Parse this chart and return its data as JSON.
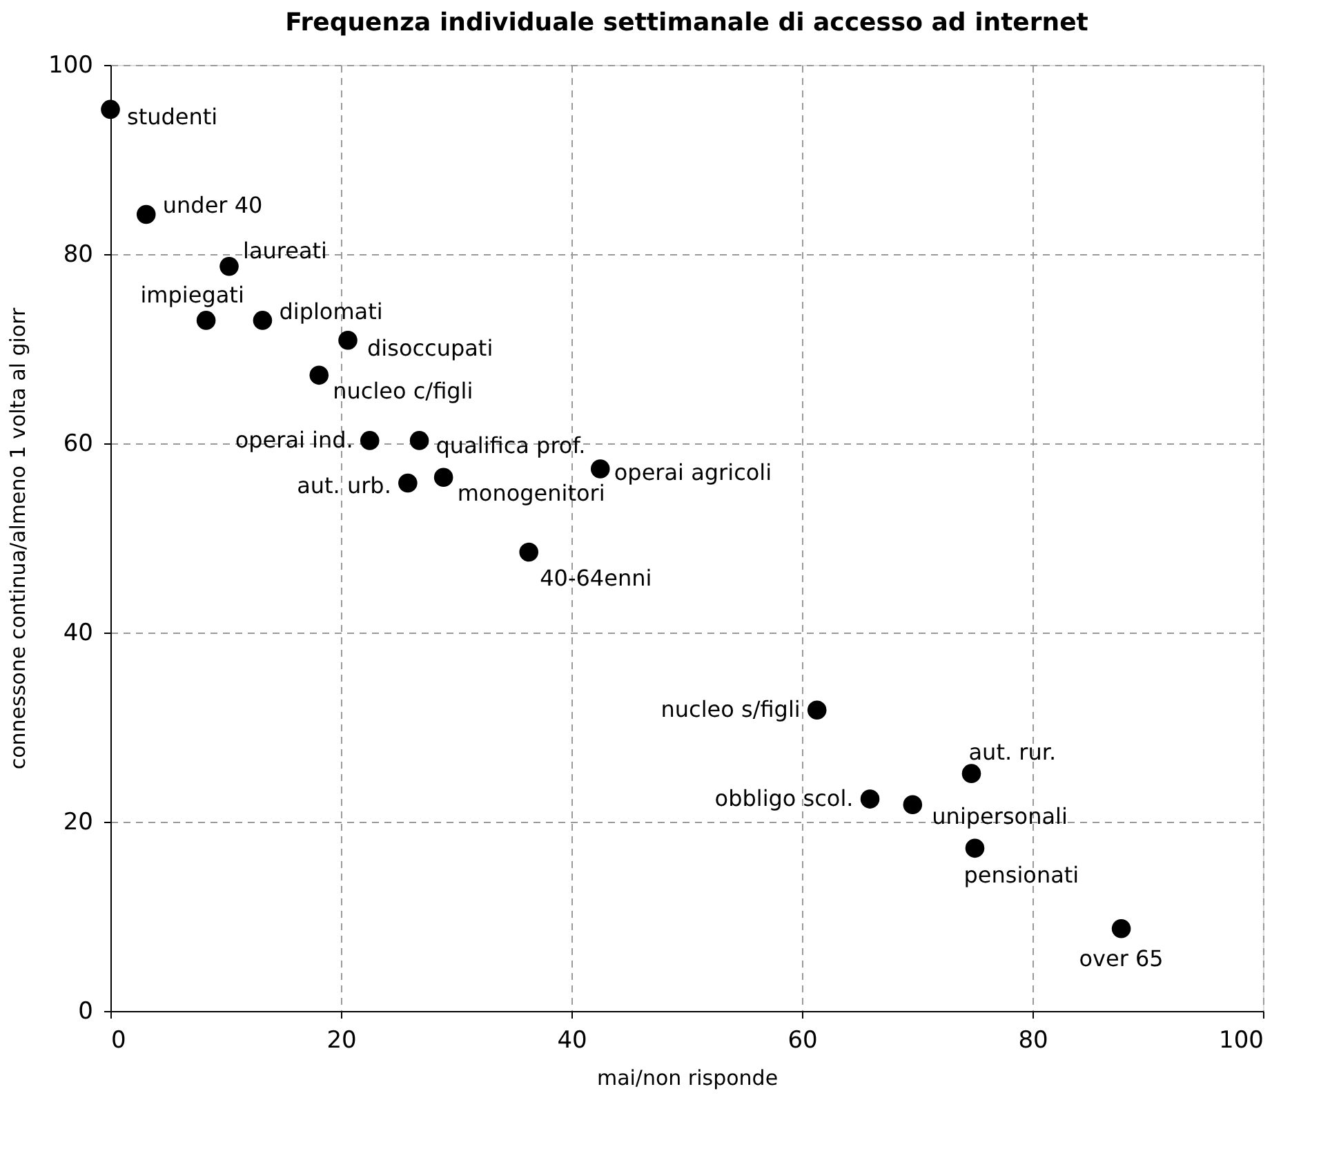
{
  "chart_data": {
    "type": "scatter",
    "title": "Frequenza individuale settimanale di accesso ad internet",
    "xlabel": "mai/non risponde",
    "ylabel": "connessone continua/almeno 1 volta al giorr",
    "x": [
      0,
      3.1,
      10.3,
      8.3,
      13.2,
      20.6,
      18.1,
      22.5,
      26.8,
      25.8,
      28.9,
      42.5,
      36.3,
      61.3,
      74.7,
      65.9,
      69.6,
      75.0,
      87.7
    ],
    "series": [
      {
        "color": "#000000",
        "values": [
          95.3,
          84.2,
          78.7,
          73.0,
          73.0,
          70.9,
          67.2,
          60.3,
          60.3,
          55.8,
          56.4,
          57.3,
          48.5,
          31.8,
          25.1,
          22.4,
          21.8,
          17.2,
          8.7
        ]
      }
    ],
    "annotations": [
      {
        "text": "studenti",
        "x": 0,
        "y": 95.3
      },
      {
        "text": "under 40",
        "x": 3.1,
        "y": 84.2
      },
      {
        "text": "laureati",
        "x": 10.3,
        "y": 78.7
      },
      {
        "text": "impiegati",
        "x": 8.3,
        "y": 73.0
      },
      {
        "text": "diplomati",
        "x": 13.2,
        "y": 73.0
      },
      {
        "text": "disoccupati",
        "x": 20.6,
        "y": 70.9
      },
      {
        "text": "nucleo c/figli",
        "x": 18.1,
        "y": 67.2
      },
      {
        "text": "operai ind.",
        "x": 22.5,
        "y": 60.3
      },
      {
        "text": "qualifica prof.",
        "x": 26.8,
        "y": 60.3
      },
      {
        "text": "aut. urb.",
        "x": 25.8,
        "y": 55.8
      },
      {
        "text": "monogenitori",
        "x": 28.9,
        "y": 56.4
      },
      {
        "text": "operai agricoli",
        "x": 42.5,
        "y": 57.3
      },
      {
        "text": "40-64enni",
        "x": 36.3,
        "y": 48.5
      },
      {
        "text": "nucleo s/figli",
        "x": 61.3,
        "y": 31.8
      },
      {
        "text": "aut. rur.",
        "x": 74.7,
        "y": 25.1
      },
      {
        "text": "obbligo scol.",
        "x": 65.9,
        "y": 22.4
      },
      {
        "text": "unipersonali",
        "x": 69.6,
        "y": 21.8
      },
      {
        "text": "pensionati",
        "x": 75.0,
        "y": 17.2
      },
      {
        "text": "over 65",
        "x": 87.7,
        "y": 8.7
      }
    ],
    "xlim": [
      0,
      100
    ],
    "xticks": [
      0,
      20,
      40,
      60,
      80,
      100
    ],
    "ylim": [
      0,
      100
    ],
    "yticks": [
      0,
      20,
      40,
      60,
      80,
      100
    ],
    "grid": true,
    "marker": "circle"
  }
}
